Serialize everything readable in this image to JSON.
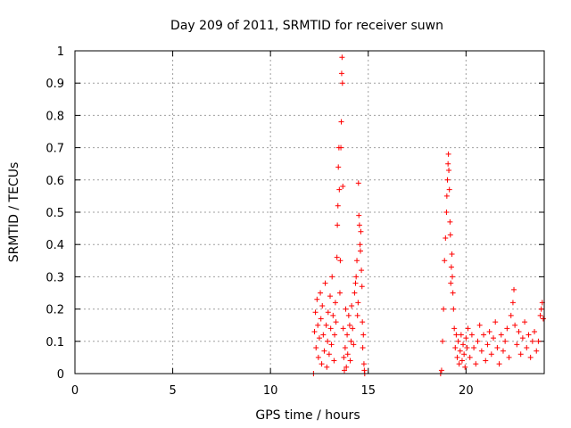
{
  "chart_data": {
    "type": "scatter",
    "title": "Day 209 of 2011, SRMTID for receiver suwn",
    "xlabel": "GPS time / hours",
    "ylabel": "SRMTID / TECUs",
    "xlim": [
      0,
      24
    ],
    "ylim": [
      0,
      1
    ],
    "xticks": [
      0,
      5,
      10,
      15,
      20
    ],
    "xtick_labels": [
      "0",
      "5",
      "10",
      "15",
      "20"
    ],
    "yticks": [
      0,
      0.1,
      0.2,
      0.3,
      0.4,
      0.5,
      0.6,
      0.7,
      0.8,
      0.9,
      1
    ],
    "ytick_labels": [
      "0",
      "0.1",
      "0.2",
      "0.3",
      "0.4",
      "0.5",
      "0.6",
      "0.7",
      "0.8",
      "0.9",
      "1"
    ],
    "grid": true,
    "marker": "+",
    "marker_color": "#ff0000",
    "series": [
      {
        "name": "",
        "points": [
          [
            12.2,
            0.0
          ],
          [
            12.25,
            0.13
          ],
          [
            12.3,
            0.19
          ],
          [
            12.33,
            0.08
          ],
          [
            12.38,
            0.23
          ],
          [
            12.42,
            0.15
          ],
          [
            12.45,
            0.05
          ],
          [
            12.5,
            0.11
          ],
          [
            12.55,
            0.25
          ],
          [
            12.58,
            0.17
          ],
          [
            12.62,
            0.03
          ],
          [
            12.65,
            0.21
          ],
          [
            12.7,
            0.12
          ],
          [
            12.75,
            0.07
          ],
          [
            12.8,
            0.28
          ],
          [
            12.85,
            0.15
          ],
          [
            12.88,
            0.02
          ],
          [
            12.92,
            0.1
          ],
          [
            12.95,
            0.19
          ],
          [
            13.0,
            0.06
          ],
          [
            13.05,
            0.24
          ],
          [
            13.08,
            0.14
          ],
          [
            13.12,
            0.09
          ],
          [
            13.15,
            0.3
          ],
          [
            13.2,
            0.18
          ],
          [
            13.25,
            0.04
          ],
          [
            13.28,
            0.12
          ],
          [
            13.32,
            0.22
          ],
          [
            13.35,
            0.16
          ],
          [
            13.4,
            0.36
          ],
          [
            13.42,
            0.46
          ],
          [
            13.45,
            0.52
          ],
          [
            13.47,
            0.64
          ],
          [
            13.5,
            0.7
          ],
          [
            13.52,
            0.57
          ],
          [
            13.55,
            0.25
          ],
          [
            13.57,
            0.35
          ],
          [
            13.6,
            0.7
          ],
          [
            13.62,
            0.78
          ],
          [
            13.64,
            0.93
          ],
          [
            13.66,
            0.98
          ],
          [
            13.68,
            0.9
          ],
          [
            13.7,
            0.58
          ],
          [
            13.72,
            0.14
          ],
          [
            13.75,
            0.05
          ],
          [
            13.78,
            0.01
          ],
          [
            13.82,
            0.08
          ],
          [
            13.85,
            0.2
          ],
          [
            13.88,
            0.02
          ],
          [
            13.92,
            0.12
          ],
          [
            13.95,
            0.06
          ],
          [
            14.0,
            0.18
          ],
          [
            14.05,
            0.15
          ],
          [
            14.08,
            0.04
          ],
          [
            14.12,
            0.1
          ],
          [
            14.15,
            0.21
          ],
          [
            14.2,
            0.14
          ],
          [
            14.25,
            0.09
          ],
          [
            14.3,
            0.25
          ],
          [
            14.35,
            0.28
          ],
          [
            14.38,
            0.3
          ],
          [
            14.42,
            0.35
          ],
          [
            14.45,
            0.18
          ],
          [
            14.48,
            0.22
          ],
          [
            14.5,
            0.59
          ],
          [
            14.52,
            0.49
          ],
          [
            14.55,
            0.46
          ],
          [
            14.58,
            0.4
          ],
          [
            14.6,
            0.38
          ],
          [
            14.62,
            0.44
          ],
          [
            14.65,
            0.32
          ],
          [
            14.68,
            0.27
          ],
          [
            14.7,
            0.16
          ],
          [
            14.72,
            0.08
          ],
          [
            14.75,
            0.12
          ],
          [
            14.78,
            0.03
          ],
          [
            14.8,
            0.01
          ],
          [
            14.82,
            0.0
          ],
          [
            18.7,
            0.0
          ],
          [
            18.75,
            0.01
          ],
          [
            18.8,
            0.1
          ],
          [
            18.85,
            0.2
          ],
          [
            18.9,
            0.35
          ],
          [
            18.95,
            0.42
          ],
          [
            19.0,
            0.5
          ],
          [
            19.02,
            0.55
          ],
          [
            19.05,
            0.6
          ],
          [
            19.08,
            0.65
          ],
          [
            19.1,
            0.68
          ],
          [
            19.12,
            0.63
          ],
          [
            19.15,
            0.57
          ],
          [
            19.18,
            0.47
          ],
          [
            19.2,
            0.43
          ],
          [
            19.22,
            0.28
          ],
          [
            19.25,
            0.33
          ],
          [
            19.28,
            0.37
          ],
          [
            19.3,
            0.3
          ],
          [
            19.33,
            0.25
          ],
          [
            19.36,
            0.2
          ],
          [
            19.4,
            0.14
          ],
          [
            19.45,
            0.08
          ],
          [
            19.5,
            0.12
          ],
          [
            19.55,
            0.05
          ],
          [
            19.6,
            0.1
          ],
          [
            19.65,
            0.03
          ],
          [
            19.7,
            0.07
          ],
          [
            19.75,
            0.12
          ],
          [
            19.8,
            0.04
          ],
          [
            19.85,
            0.09
          ],
          [
            19.9,
            0.06
          ],
          [
            19.95,
            0.02
          ],
          [
            20.0,
            0.11
          ],
          [
            20.05,
            0.08
          ],
          [
            20.1,
            0.14
          ],
          [
            20.2,
            0.05
          ],
          [
            20.3,
            0.12
          ],
          [
            20.4,
            0.08
          ],
          [
            20.5,
            0.03
          ],
          [
            20.6,
            0.1
          ],
          [
            20.7,
            0.15
          ],
          [
            20.8,
            0.07
          ],
          [
            20.9,
            0.12
          ],
          [
            21.0,
            0.04
          ],
          [
            21.1,
            0.09
          ],
          [
            21.2,
            0.13
          ],
          [
            21.3,
            0.06
          ],
          [
            21.4,
            0.11
          ],
          [
            21.5,
            0.16
          ],
          [
            21.6,
            0.08
          ],
          [
            21.7,
            0.03
          ],
          [
            21.8,
            0.12
          ],
          [
            21.9,
            0.07
          ],
          [
            22.0,
            0.1
          ],
          [
            22.1,
            0.14
          ],
          [
            22.2,
            0.05
          ],
          [
            22.3,
            0.18
          ],
          [
            22.4,
            0.22
          ],
          [
            22.45,
            0.26
          ],
          [
            22.5,
            0.15
          ],
          [
            22.6,
            0.09
          ],
          [
            22.7,
            0.13
          ],
          [
            22.8,
            0.06
          ],
          [
            22.9,
            0.11
          ],
          [
            23.0,
            0.16
          ],
          [
            23.1,
            0.08
          ],
          [
            23.2,
            0.12
          ],
          [
            23.3,
            0.05
          ],
          [
            23.4,
            0.1
          ],
          [
            23.5,
            0.13
          ],
          [
            23.6,
            0.07
          ],
          [
            23.7,
            0.1
          ],
          [
            23.8,
            0.18
          ],
          [
            23.85,
            0.2
          ],
          [
            23.9,
            0.22
          ],
          [
            23.95,
            0.17
          ]
        ]
      }
    ]
  }
}
